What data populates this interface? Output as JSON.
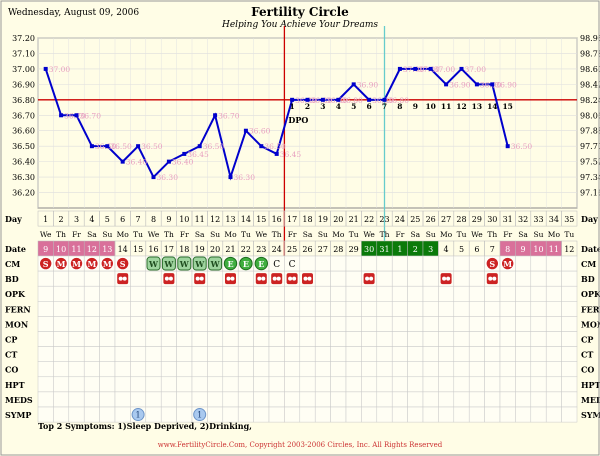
{
  "header": {
    "date": "Wednesday, August 09, 2006",
    "title": "Fertility Circle",
    "subtitle": "Helping You Achieve Your Dreams"
  },
  "footer": {
    "symptoms": "Top 2 Symptoms: 1)Sleep Deprived, 2)Drinking,",
    "copyright": "www.FertilityCircle.Com, Copyright 2003-2006 Circles, Inc. All Rights Reserved"
  },
  "colors": {
    "background": "#fffde6",
    "temp_line": "#0000cc",
    "coverline": "#cc0000",
    "ovulation_line": "#cc0000",
    "transfer_line": "#66cccc",
    "menses_band": "#d9709a",
    "cm_green": "#0a7a0a",
    "cm_light_green": "#9ed49e",
    "menses_icon": "#cc2222",
    "temp_label": "#e8a0c0"
  },
  "chart_data": {
    "type": "line",
    "title": "Fertility Circle",
    "y_left_ticks": [
      "37.20",
      "37.10",
      "37.00",
      "36.90",
      "36.80",
      "36.70",
      "36.60",
      "36.50",
      "36.40",
      "36.30",
      "36.20"
    ],
    "y_right_ticks": [
      "98.96",
      "98.78",
      "98.60",
      "98.42",
      "98.24",
      "98.06",
      "97.88",
      "97.70",
      "97.52",
      "97.34",
      "97.16"
    ],
    "ylim": [
      36.1,
      37.2
    ],
    "x_label": "Day",
    "days": [
      1,
      2,
      3,
      4,
      5,
      6,
      7,
      8,
      9,
      10,
      11,
      12,
      13,
      14,
      15,
      16,
      17,
      18,
      19,
      20,
      21,
      22,
      23,
      24,
      25,
      26,
      27,
      28,
      29,
      30,
      31,
      32,
      33,
      34,
      35
    ],
    "weekdays": [
      "We",
      "Th",
      "Fr",
      "Sa",
      "Su",
      "Mo",
      "Tu",
      "We",
      "Th",
      "Fr",
      "Sa",
      "Su",
      "Mo",
      "Tu",
      "We",
      "Th",
      "Fr",
      "Sa",
      "Su",
      "Mo",
      "Tu",
      "We",
      "Th",
      "Fr",
      "Sa",
      "Su",
      "Mo",
      "Tu",
      "We",
      "Th",
      "Fr",
      "Sa",
      "Su",
      "Mo",
      "Tu"
    ],
    "dates": [
      "9",
      "10",
      "11",
      "12",
      "13",
      "14",
      "15",
      "16",
      "17",
      "18",
      "19",
      "20",
      "21",
      "22",
      "23",
      "24",
      "25",
      "26",
      "27",
      "28",
      "29",
      "30",
      "31",
      "1",
      "2",
      "3",
      "4",
      "5",
      "6",
      "7",
      "8",
      "9",
      "10",
      "11",
      "12"
    ],
    "temps": [
      {
        "day": 1,
        "t": 37.0,
        "label": "37.00"
      },
      {
        "day": 2,
        "t": 36.7,
        "label": "36.70"
      },
      {
        "day": 3,
        "t": 36.7,
        "label": "36.70"
      },
      {
        "day": 4,
        "t": 36.5,
        "label": "36.50"
      },
      {
        "day": 5,
        "t": 36.5,
        "label": "36.50"
      },
      {
        "day": 6,
        "t": 36.4,
        "label": "36.40"
      },
      {
        "day": 7,
        "t": 36.5,
        "label": "36.50"
      },
      {
        "day": 8,
        "t": 36.3,
        "label": "36.30"
      },
      {
        "day": 9,
        "t": 36.4,
        "label": "36.40"
      },
      {
        "day": 10,
        "t": 36.45,
        "label": "36.45"
      },
      {
        "day": 11,
        "t": 36.5,
        "label": "36.50"
      },
      {
        "day": 12,
        "t": 36.7,
        "label": "36.70"
      },
      {
        "day": 13,
        "t": 36.3,
        "label": "36.30"
      },
      {
        "day": 14,
        "t": 36.6,
        "label": "36.60"
      },
      {
        "day": 15,
        "t": 36.5,
        "label": "36.50"
      },
      {
        "day": 16,
        "t": 36.45,
        "label": "36.45"
      },
      {
        "day": 17,
        "t": 36.8,
        "label": "36.80"
      },
      {
        "day": 18,
        "t": 36.8,
        "label": "36.80"
      },
      {
        "day": 19,
        "t": 36.8,
        "label": "36.80"
      },
      {
        "day": 20,
        "t": 36.8,
        "label": "36.80"
      },
      {
        "day": 21,
        "t": 36.9,
        "label": "36.90"
      },
      {
        "day": 22,
        "t": 36.8,
        "label": "36.80"
      },
      {
        "day": 23,
        "t": 36.8,
        "label": "36.80"
      },
      {
        "day": 24,
        "t": 37.0,
        "label": "37.00"
      },
      {
        "day": 25,
        "t": 37.0,
        "label": "37.00"
      },
      {
        "day": 26,
        "t": 37.0,
        "label": "37.00"
      },
      {
        "day": 27,
        "t": 36.9,
        "label": "36.90"
      },
      {
        "day": 28,
        "t": 37.0,
        "label": "37.00"
      },
      {
        "day": 29,
        "t": 36.9,
        "label": "36.90"
      },
      {
        "day": 30,
        "t": 36.9,
        "label": "36.90"
      },
      {
        "day": 31,
        "t": 36.5,
        "label": "36.50"
      }
    ],
    "dpo_label": "DPO",
    "dpo_numbers": [
      {
        "day": 17,
        "n": "1"
      },
      {
        "day": 18,
        "n": "2"
      },
      {
        "day": 19,
        "n": "3"
      },
      {
        "day": 20,
        "n": "4"
      },
      {
        "day": 21,
        "n": "5"
      },
      {
        "day": 22,
        "n": "6"
      },
      {
        "day": 23,
        "n": "7"
      },
      {
        "day": 24,
        "n": "8"
      },
      {
        "day": 25,
        "n": "9"
      },
      {
        "day": 26,
        "n": "10"
      },
      {
        "day": 27,
        "n": "11"
      },
      {
        "day": 28,
        "n": "12"
      },
      {
        "day": 29,
        "n": "13"
      },
      {
        "day": 30,
        "n": "14"
      },
      {
        "day": 31,
        "n": "15"
      }
    ],
    "coverline_temp": 36.8,
    "ovulation_day": 16,
    "transfer_day": 23,
    "menses_date_days": [
      1,
      2,
      3,
      4,
      5,
      31,
      32,
      33,
      34
    ],
    "egg_white_date_days": [
      22,
      23,
      24,
      25,
      26
    ],
    "cm": [
      {
        "day": 1,
        "mark": "S",
        "kind": "menses"
      },
      {
        "day": 2,
        "mark": "M",
        "kind": "menses"
      },
      {
        "day": 3,
        "mark": "M",
        "kind": "menses"
      },
      {
        "day": 4,
        "mark": "M",
        "kind": "menses"
      },
      {
        "day": 5,
        "mark": "M",
        "kind": "menses"
      },
      {
        "day": 6,
        "mark": "S",
        "kind": "menses"
      },
      {
        "day": 8,
        "mark": "W",
        "kind": "watery"
      },
      {
        "day": 9,
        "mark": "W",
        "kind": "watery"
      },
      {
        "day": 10,
        "mark": "W",
        "kind": "watery"
      },
      {
        "day": 11,
        "mark": "W",
        "kind": "watery"
      },
      {
        "day": 12,
        "mark": "W",
        "kind": "watery"
      },
      {
        "day": 13,
        "mark": "E",
        "kind": "eggwhite"
      },
      {
        "day": 14,
        "mark": "E",
        "kind": "eggwhite"
      },
      {
        "day": 15,
        "mark": "E",
        "kind": "eggwhite"
      },
      {
        "day": 16,
        "mark": "C",
        "kind": "creamy"
      },
      {
        "day": 17,
        "mark": "C",
        "kind": "creamy"
      },
      {
        "day": 30,
        "mark": "S",
        "kind": "menses"
      },
      {
        "day": 31,
        "mark": "M",
        "kind": "menses"
      }
    ],
    "bd_days": [
      6,
      9,
      11,
      13,
      15,
      16,
      17,
      18,
      22,
      27,
      30
    ],
    "symp": [
      {
        "day": 7,
        "n": "1"
      },
      {
        "day": 11,
        "n": "1"
      }
    ],
    "row_labels": [
      "CM",
      "BD",
      "OPK",
      "FERN",
      "MON",
      "CP",
      "CT",
      "CO",
      "HPT",
      "MEDS",
      "SYMP"
    ],
    "row_day_label": "Day",
    "row_date_label": "Date"
  }
}
